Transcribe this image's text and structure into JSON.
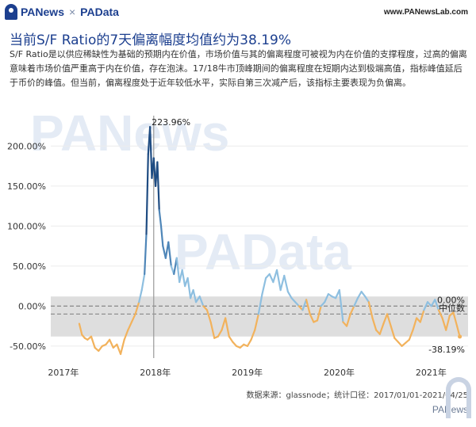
{
  "header": {
    "brand_left": "PANews",
    "brand_sep": "×",
    "brand_right": "PAData",
    "site": "www.PANewsLab.com"
  },
  "title": "当前S/F Ratio的7天偏离幅度均值约为38.19%",
  "description": "S/F Ratio是以供应稀缺性为基础的预期内在价值，市场价值与其的偏离程度可被视为内在价值的支撑程度，过高的偏离意味着市场价值严重高于内在价值，存在泡沫。17/18牛市顶峰期间的偏离程度在短期内达到极端高值，指标峰值延后于币价的峰值。但当前，偏离程度处于近年较低水平，实际自第三次减产后，该指标主要表现为负偏离。",
  "footer": "数据来源：glassnode；统计口径：2017/01/01-2021/04/25",
  "watermark": "PANews",
  "colors": {
    "positive": "#8ebfe0",
    "negative": "#f2b25c",
    "peak": "#1f4c82",
    "band": "#dedede"
  },
  "chart_data": {
    "type": "line",
    "ylim": [
      -65,
      240
    ],
    "yticks": [
      -50,
      0,
      50,
      100,
      150,
      200
    ],
    "ytick_labels": [
      "-50.00%",
      "0.00%",
      "50.00%",
      "100.00%",
      "150.00%",
      "200.00%"
    ],
    "xticks": [
      2017,
      2018,
      2019,
      2020,
      2021
    ],
    "xtick_labels": [
      "2017年",
      "2018年",
      "2019年",
      "2020年",
      "2021年"
    ],
    "xlim": [
      2016.88,
      2021.42
    ],
    "median": -10,
    "band": [
      -38,
      12
    ],
    "vline": 2018,
    "annotations": [
      {
        "x": 2017.96,
        "y": 223.96,
        "text": "223.96%"
      },
      {
        "x": 2021.33,
        "y": 0,
        "text": "0.00%"
      },
      {
        "x": 2021.33,
        "y": -10,
        "text": "中位数"
      },
      {
        "x": 2021.33,
        "y": -38.19,
        "text": "-38.19%"
      }
    ],
    "series": [
      {
        "x": [
          2017.19,
          2017.22,
          2017.25,
          2017.28,
          2017.32,
          2017.36,
          2017.4,
          2017.44,
          2017.48,
          2017.52,
          2017.56,
          2017.6,
          2017.64,
          2017.68,
          2017.72,
          2017.76,
          2017.8,
          2017.84,
          2017.87,
          2017.9,
          2017.92,
          2017.94,
          2017.96,
          2017.98,
          2018.0,
          2018.02,
          2018.04,
          2018.06,
          2018.08,
          2018.1,
          2018.13,
          2018.16,
          2018.19,
          2018.22,
          2018.25,
          2018.28,
          2018.31,
          2018.34,
          2018.37,
          2018.4,
          2018.43,
          2018.46,
          2018.5,
          2018.54,
          2018.58,
          2018.62,
          2018.66,
          2018.7,
          2018.74,
          2018.78,
          2018.82,
          2018.86,
          2018.9,
          2018.94,
          2018.98,
          2019.02,
          2019.06,
          2019.1,
          2019.14,
          2019.18,
          2019.22,
          2019.26,
          2019.3,
          2019.34,
          2019.38,
          2019.42,
          2019.46,
          2019.5,
          2019.54,
          2019.58,
          2019.62,
          2019.66,
          2019.7,
          2019.74,
          2019.78,
          2019.82,
          2019.86,
          2019.9,
          2019.94,
          2019.98,
          2020.02,
          2020.06,
          2020.1,
          2020.14,
          2020.18,
          2020.22,
          2020.26,
          2020.3,
          2020.34,
          2020.38,
          2020.42,
          2020.46,
          2020.5,
          2020.54,
          2020.58,
          2020.62,
          2020.66,
          2020.7,
          2020.74,
          2020.78,
          2020.82,
          2020.86,
          2020.9,
          2020.94,
          2020.98,
          2021.02,
          2021.06,
          2021.1,
          2021.14,
          2021.18,
          2021.22,
          2021.26,
          2021.3,
          2021.33
        ],
        "y": [
          -22,
          -36,
          -40,
          -42,
          -38,
          -52,
          -56,
          -50,
          -48,
          -42,
          -52,
          -48,
          -60,
          -42,
          -30,
          -20,
          -10,
          5,
          20,
          40,
          90,
          190,
          223.96,
          160,
          185,
          150,
          180,
          120,
          100,
          75,
          60,
          80,
          50,
          40,
          60,
          30,
          45,
          25,
          35,
          10,
          20,
          5,
          12,
          0,
          -5,
          -20,
          -40,
          -38,
          -30,
          -15,
          -38,
          -45,
          -50,
          -52,
          -48,
          -50,
          -42,
          -30,
          -10,
          15,
          35,
          40,
          30,
          45,
          20,
          38,
          18,
          10,
          5,
          0,
          -5,
          8,
          -10,
          -20,
          -18,
          0,
          5,
          15,
          12,
          10,
          20,
          -20,
          -25,
          -10,
          0,
          10,
          18,
          12,
          5,
          -15,
          -30,
          -35,
          -22,
          -10,
          -25,
          -40,
          -45,
          -50,
          -46,
          -42,
          -30,
          -15,
          -20,
          -5,
          5,
          0,
          8,
          -5,
          -15,
          -30,
          -12,
          -8,
          -25,
          -38.19
        ]
      }
    ]
  }
}
